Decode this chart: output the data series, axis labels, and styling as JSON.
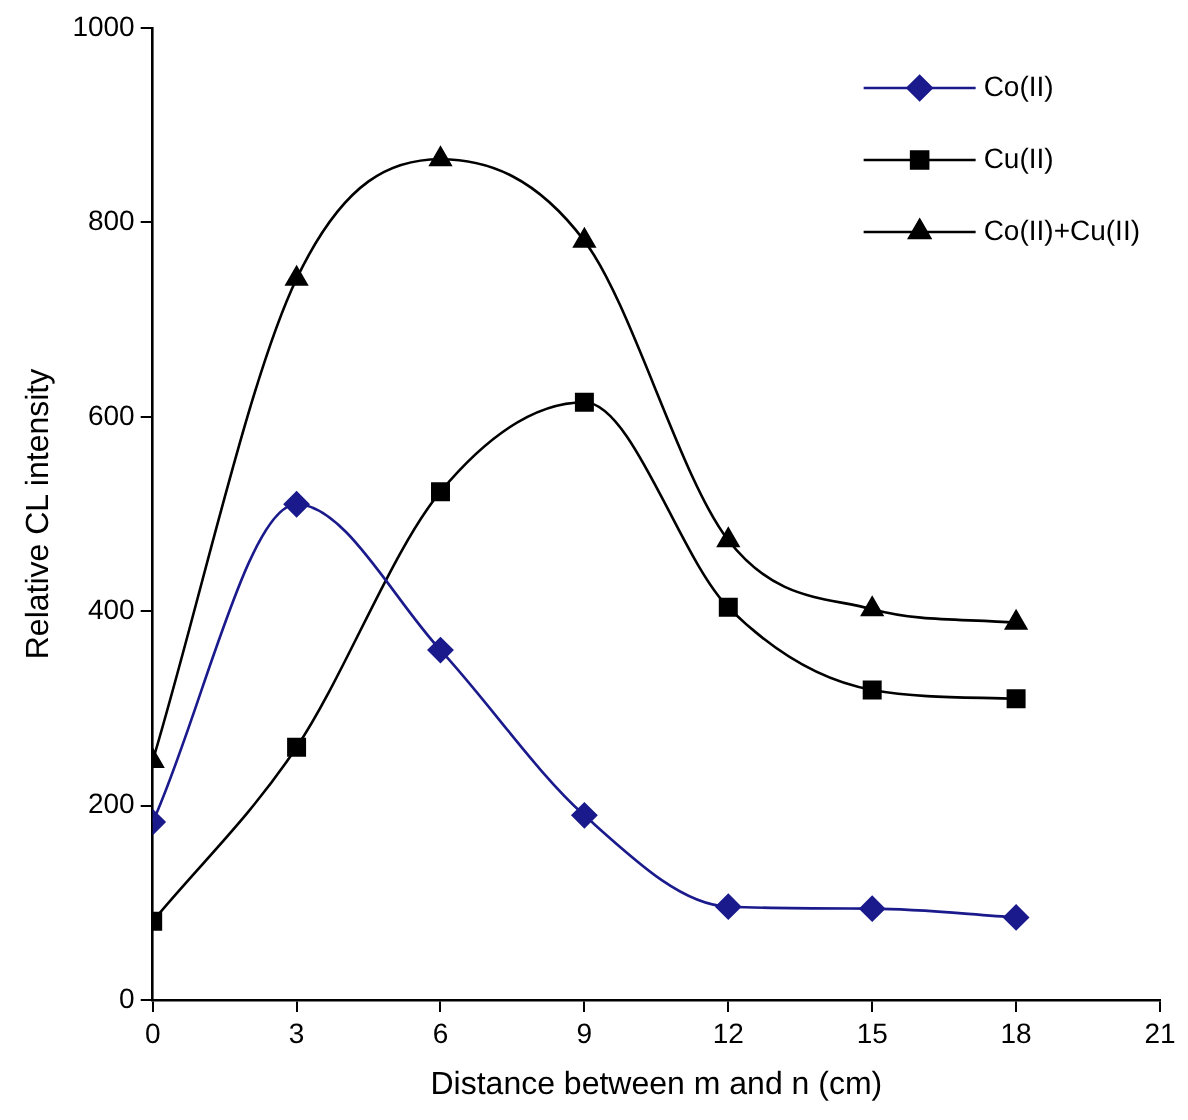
{
  "chart_data": {
    "type": "line",
    "xlabel": "Distance between m and n (cm)",
    "ylabel": "Relative CL intensity",
    "x": [
      0,
      3,
      6,
      9,
      12,
      15,
      18
    ],
    "series": [
      {
        "name": "Co(II)",
        "color": "#1a1a8c",
        "marker": "diamond",
        "values": [
          183,
          510,
          360,
          190,
          96,
          94,
          85
        ]
      },
      {
        "name": "Cu(II)",
        "color": "#000000",
        "marker": "square",
        "values": [
          81,
          260,
          523,
          615,
          404,
          319,
          310
        ]
      },
      {
        "name": "Co(II)+Cu(II)",
        "color": "#000000",
        "marker": "triangle",
        "values": [
          246,
          742,
          865,
          781,
          473,
          402,
          388
        ]
      }
    ],
    "xlim": [
      0,
      21
    ],
    "xticks": [
      0,
      3,
      6,
      9,
      12,
      15,
      18,
      21
    ],
    "ylim": [
      0,
      1000
    ],
    "yticks": [
      0,
      200,
      400,
      600,
      800,
      1000
    ],
    "grid": false,
    "legend": "top right",
    "line_style": "solid"
  }
}
